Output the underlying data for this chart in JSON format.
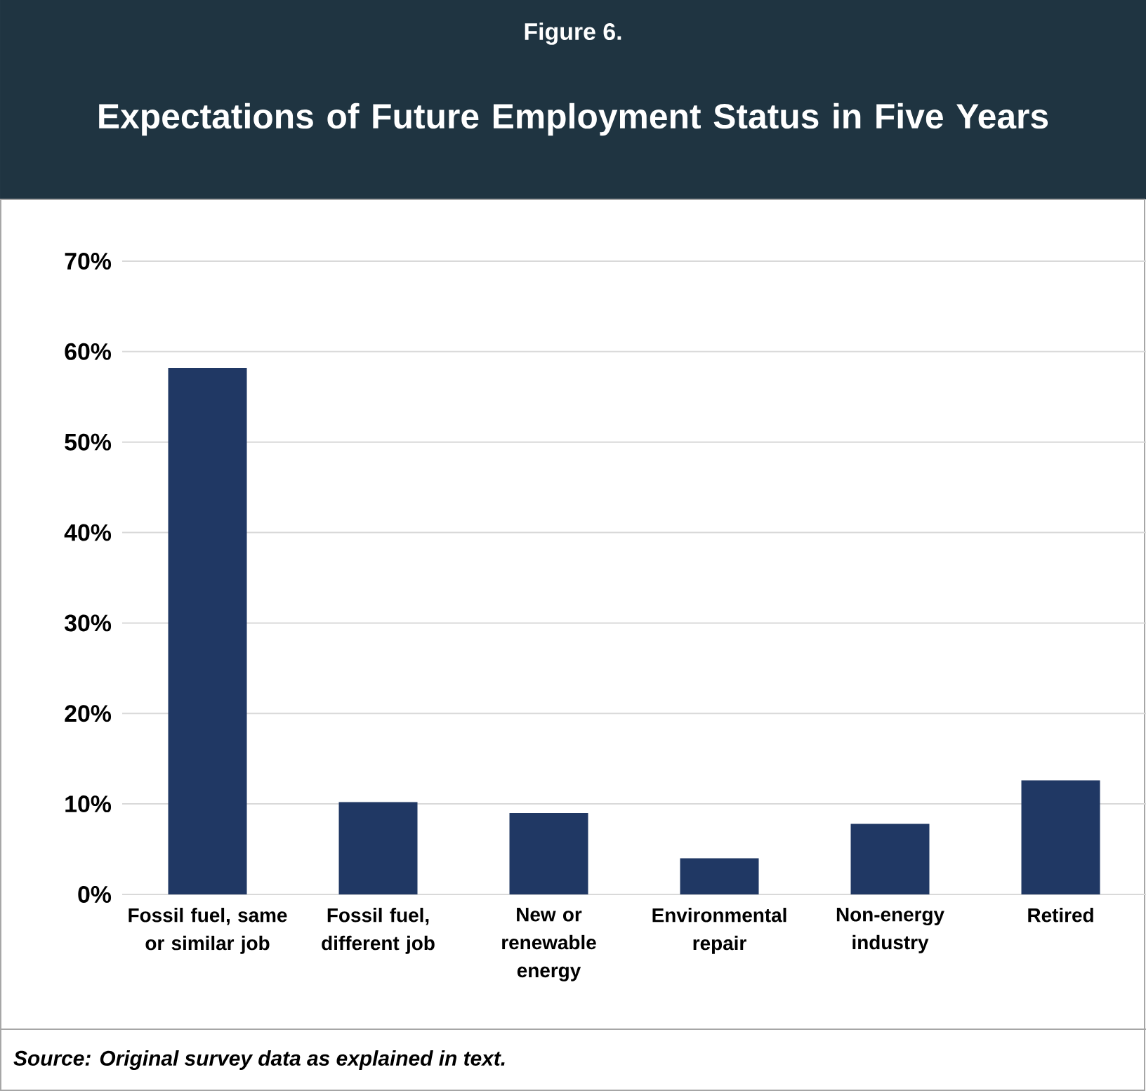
{
  "chart_data": {
    "type": "bar",
    "subtitle": "Figure 6.",
    "title": "Expectations of Future Employment Status in Five Years",
    "categories": [
      "Fossil fuel, same or similar job",
      "Fossil fuel, different job",
      "New or renewable energy",
      "Environmental repair",
      "Non-energy industry",
      "Retired"
    ],
    "values": [
      58.2,
      10.2,
      9.0,
      4.0,
      7.8,
      12.6
    ],
    "color": "#203864",
    "ylim": [
      0,
      70
    ],
    "yticks": [
      {
        "value": 0,
        "label": "0%"
      },
      {
        "value": 10,
        "label": "10%"
      },
      {
        "value": 20,
        "label": "20%"
      },
      {
        "value": 30,
        "label": "30%"
      },
      {
        "value": 40,
        "label": "40%"
      },
      {
        "value": 50,
        "label": "50%"
      },
      {
        "value": 60,
        "label": "60%"
      },
      {
        "value": 70,
        "label": "70%"
      }
    ],
    "grid": "y",
    "annotations": [
      "*Source: Original survey data as explained in text.*"
    ]
  }
}
